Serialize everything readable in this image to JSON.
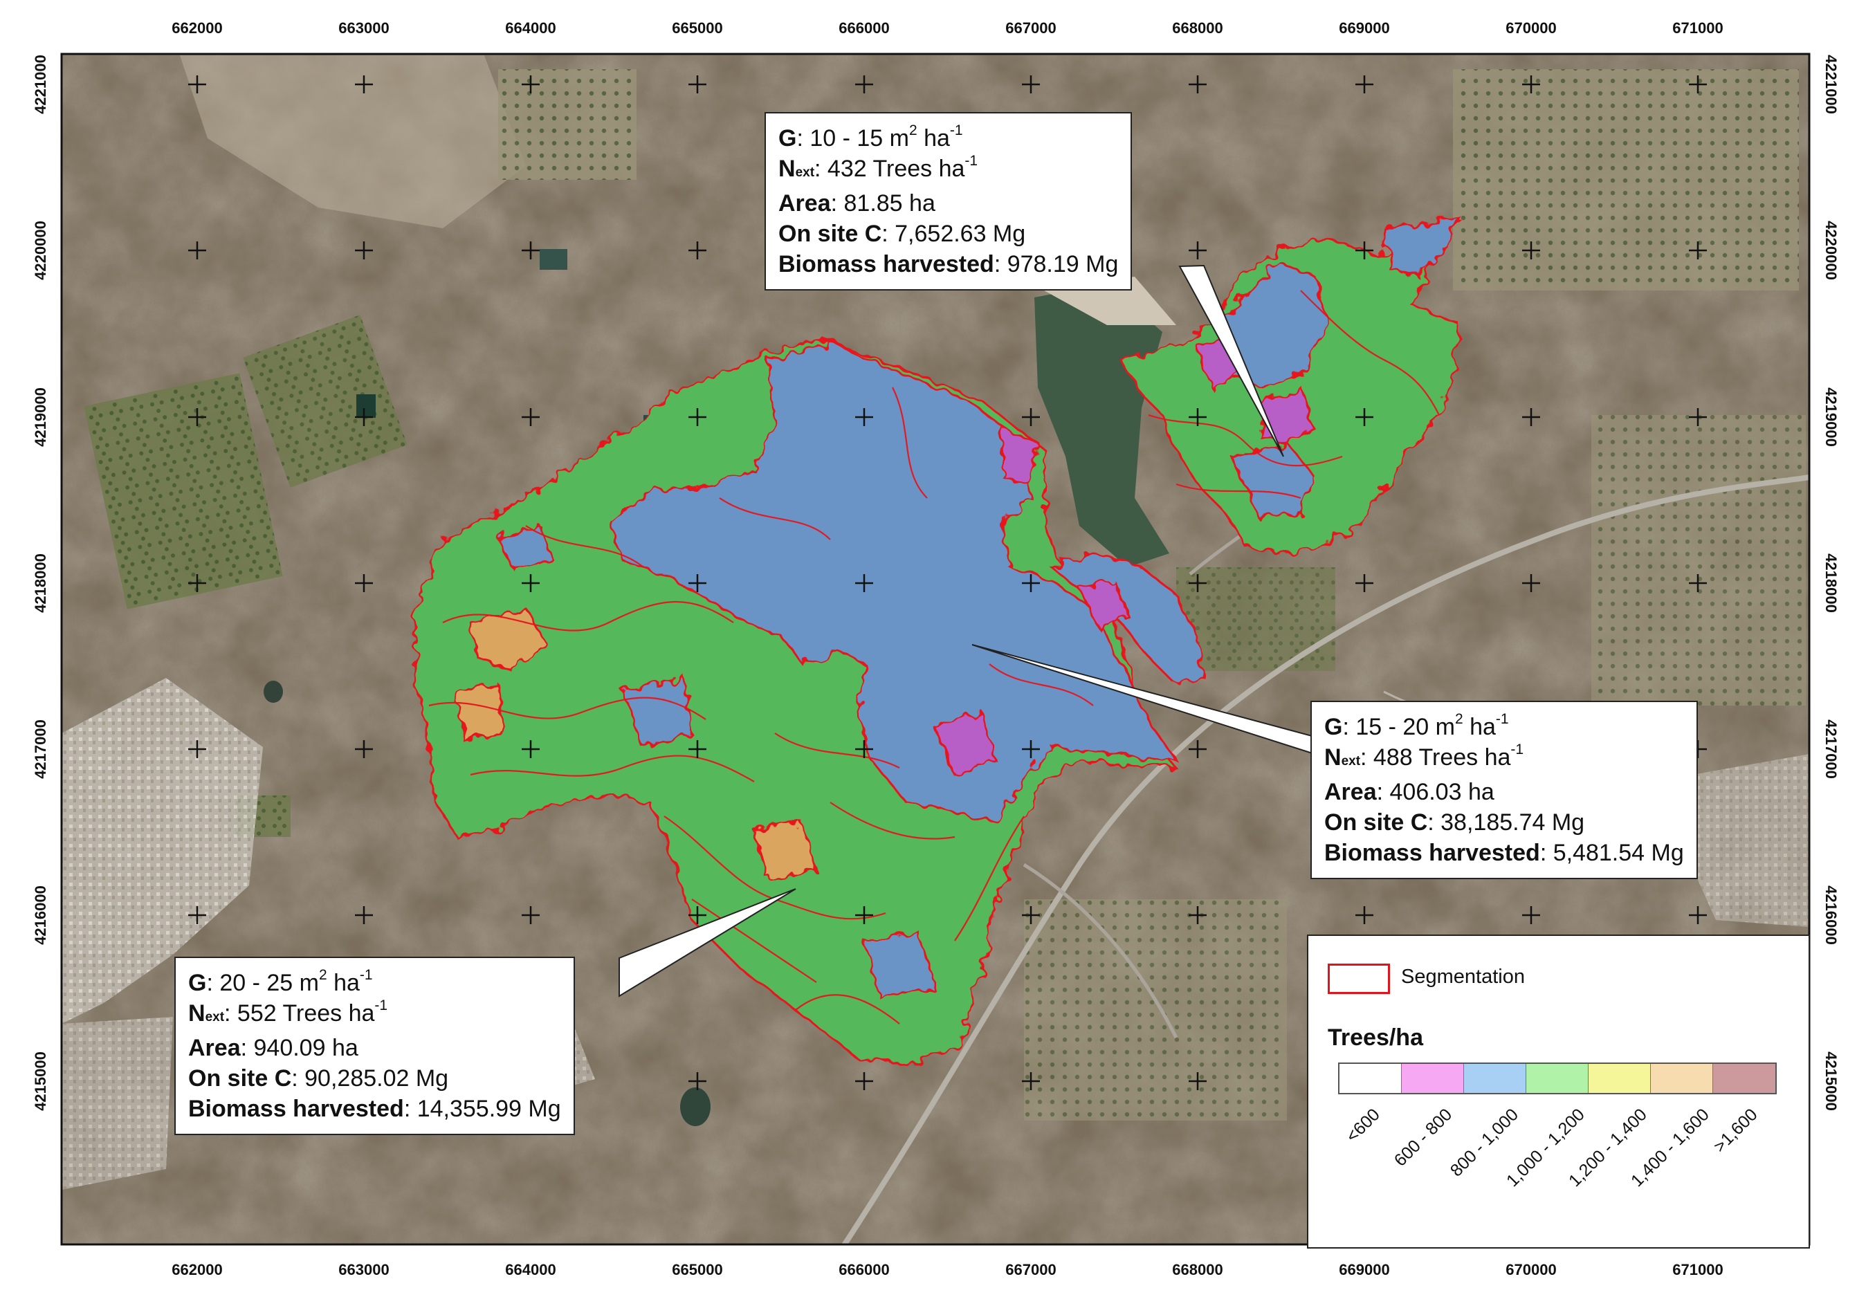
{
  "map": {
    "x_ticks": [
      "662000",
      "663000",
      "664000",
      "665000",
      "666000",
      "667000",
      "668000",
      "669000",
      "670000",
      "671000"
    ],
    "y_ticks": [
      "4221000",
      "4220000",
      "4219000",
      "4218000",
      "4217000",
      "4216000",
      "4215000"
    ],
    "colors": {
      "segmentation_outline": "#e8141c",
      "class_600_800": "#b85ec7",
      "class_800_1000": "#6a94c6",
      "class_1000_1200": "#55b85a",
      "class_1200_1400": "#e5e08a",
      "class_1400_1600": "#d9a55e"
    }
  },
  "callouts": [
    {
      "g_label": "G",
      "g_value": ": 10 - 15  m",
      "g_sup1": "2",
      "g_unit": " ha",
      "g_sup2": "-1",
      "n_label": "N",
      "n_sub": "ext",
      "n_value": ": 432 Trees ha",
      "n_sup": "-1",
      "area_label": "Area",
      "area_value": ": 81.85 ha",
      "c_label": "On site C",
      "c_value": ": 7,652.63 Mg",
      "bio_label": "Biomass harvested",
      "bio_value": ": 978.19  Mg"
    },
    {
      "g_label": "G",
      "g_value": ": 15 - 20 m",
      "g_sup1": "2",
      "g_unit": " ha",
      "g_sup2": "-1",
      "n_label": "N",
      "n_sub": "ext",
      "n_value": ": 488 Trees ha",
      "n_sup": "-1",
      "area_label": "Area",
      "area_value": ": 406.03 ha",
      "c_label": "On site C",
      "c_value": ": 38,185.74 Mg",
      "bio_label": "Biomass harvested",
      "bio_value": ": 5,481.54 Mg"
    },
    {
      "g_label": "G",
      "g_value": ": 20 - 25 m",
      "g_sup1": "2",
      "g_unit": " ha",
      "g_sup2": "-1",
      "n_label": "N",
      "n_sub": "ext",
      "n_value": ": 552 Trees ha",
      "n_sup": "-1",
      "area_label": "Area",
      "area_value": ": 940.09 ha",
      "c_label": "On site C",
      "c_value": ": 90,285.02 Mg",
      "bio_label": "Biomass harvested",
      "bio_value": ": 14,355.99 Mg"
    }
  ],
  "legend": {
    "segmentation_label": "Segmentation",
    "trees_title": "Trees/ha",
    "classes": [
      {
        "label": "<600",
        "color": "#ffffff"
      },
      {
        "label": "600 - 800",
        "color": "#f7a8f2"
      },
      {
        "label": "800 - 1,000",
        "color": "#a8d0f5"
      },
      {
        "label": "1,000 - 1,200",
        "color": "#b0f2a8"
      },
      {
        "label": "1,200 - 1,400",
        "color": "#f5f59a"
      },
      {
        "label": "1,400 - 1,600",
        "color": "#f7dcb0"
      },
      {
        "label": ">1,600",
        "color": "#cc9a9c"
      }
    ]
  }
}
